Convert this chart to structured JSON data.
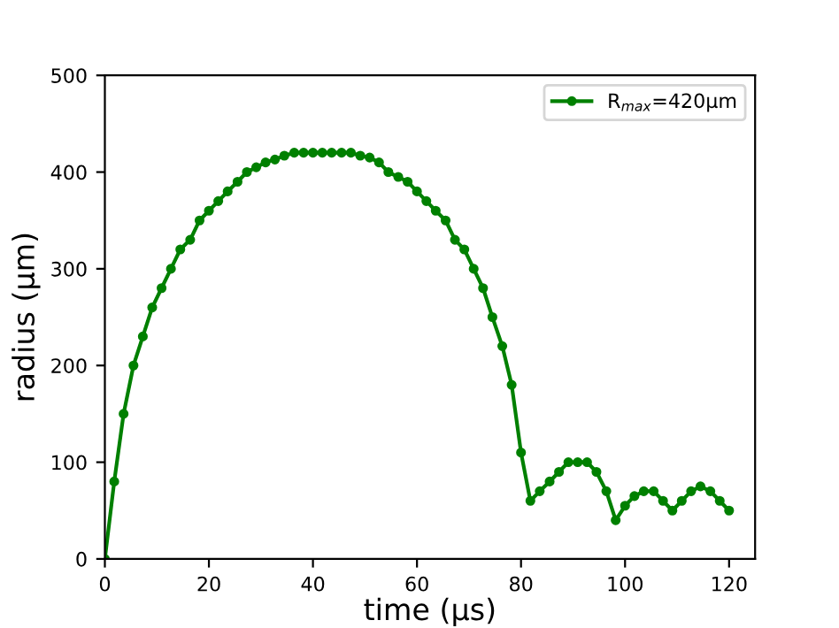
{
  "chart_data": {
    "type": "line",
    "xlabel": "time (μs)",
    "ylabel": "radius (μm)",
    "xlim": [
      0,
      125
    ],
    "ylim": [
      0,
      500
    ],
    "xticks": [
      0,
      20,
      40,
      60,
      80,
      100,
      120
    ],
    "yticks": [
      0,
      100,
      200,
      300,
      400,
      500
    ],
    "grid": false,
    "legend": "top right",
    "marker": "circle",
    "line_style": "solid",
    "series": [
      {
        "name": "R$_{max}$=420μm",
        "color": "#008000",
        "x": [
          0,
          1.8,
          3.6,
          5.5,
          7.3,
          9.1,
          10.9,
          12.7,
          14.5,
          16.4,
          18.2,
          20,
          21.8,
          23.6,
          25.5,
          27.3,
          29.1,
          30.9,
          32.7,
          34.5,
          36.4,
          38.2,
          40,
          41.8,
          43.6,
          45.5,
          47.3,
          49.1,
          50.9,
          52.7,
          54.5,
          56.4,
          58.2,
          60,
          61.8,
          63.6,
          65.5,
          67.3,
          69.1,
          70.9,
          72.7,
          74.5,
          76.4,
          78.2,
          80,
          81.8,
          83.6,
          85.5,
          87.3,
          89.1,
          90.9,
          92.7,
          94.5,
          96.4,
          98.2,
          100,
          101.8,
          103.6,
          105.5,
          107.3,
          109.1,
          110.9,
          112.7,
          114.5,
          116.4,
          118.2,
          120
        ],
        "values": [
          0,
          80,
          150,
          200,
          230,
          260,
          280,
          300,
          320,
          330,
          350,
          360,
          370,
          380,
          390,
          400,
          405,
          410,
          413,
          417,
          420,
          420,
          420,
          420,
          420,
          420,
          420,
          417,
          415,
          410,
          400,
          395,
          390,
          380,
          370,
          360,
          350,
          330,
          320,
          300,
          280,
          250,
          220,
          180,
          110,
          60,
          70,
          80,
          90,
          100,
          100,
          100,
          90,
          70,
          40,
          55,
          65,
          70,
          70,
          60,
          50,
          60,
          70,
          75,
          70,
          60,
          50
        ]
      }
    ]
  }
}
